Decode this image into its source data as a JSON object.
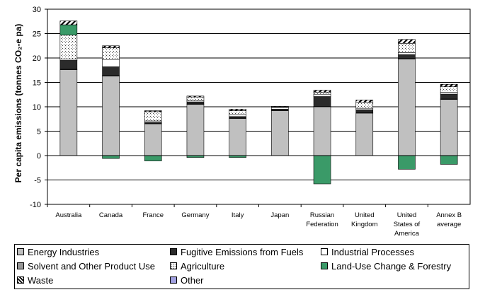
{
  "chart_data": {
    "type": "bar",
    "stacked": true,
    "title": "",
    "xlabel": "",
    "ylabel": "Per capita emissions (tonnes CO₂-e pa)",
    "ylim": [
      -10,
      30
    ],
    "yticks": [
      -10,
      -5,
      0,
      5,
      10,
      15,
      20,
      25,
      30
    ],
    "grid": true,
    "legend_position": "bottom",
    "categories": [
      [
        "Australia"
      ],
      [
        "Canada"
      ],
      [
        "France"
      ],
      [
        "Germany"
      ],
      [
        "Italy"
      ],
      [
        "Japan"
      ],
      [
        "Russian",
        "Federation"
      ],
      [
        "United",
        "Kingdom"
      ],
      [
        "United",
        "States of",
        "America"
      ],
      [
        "Annex B",
        "average"
      ]
    ],
    "series": [
      {
        "name": "Energy Industries",
        "color": "#c0c0c0",
        "pattern": "solid",
        "values": [
          17.6,
          16.3,
          6.5,
          10.5,
          7.6,
          9.2,
          10.0,
          8.7,
          19.8,
          11.5
        ]
      },
      {
        "name": "Solvent and Other Product Use",
        "color": "#969696",
        "pattern": "solid",
        "values": [
          0.1,
          0.1,
          0.1,
          0.1,
          0.1,
          0.1,
          0.1,
          0.1,
          0.1,
          0.1
        ]
      },
      {
        "name": "Fugitive Emissions from Fuels",
        "color": "#2b2b2b",
        "pattern": "solid",
        "values": [
          1.8,
          1.8,
          0.2,
          0.4,
          0.3,
          0.2,
          2.0,
          0.6,
          0.8,
          1.0
        ]
      },
      {
        "name": "Industrial Processes",
        "color": "#ffffff",
        "pattern": "solid",
        "values": [
          0.3,
          1.5,
          0.3,
          0.2,
          0.4,
          0.3,
          0.4,
          0.3,
          0.4,
          0.4
        ]
      },
      {
        "name": "Agriculture",
        "color": "#ffffff",
        "pattern": "dots",
        "values": [
          4.9,
          2.4,
          1.9,
          0.8,
          0.8,
          0.2,
          0.5,
          1.2,
          1.9,
          1.1
        ]
      },
      {
        "name": "Land-Use Change & Forestry",
        "color": "#3a9a68",
        "pattern": "solid",
        "values": [
          2.1,
          -0.6,
          -1.1,
          -0.4,
          -0.4,
          0.0,
          -5.8,
          0.0,
          -2.8,
          -1.8
        ]
      },
      {
        "name": "Waste",
        "color": "#ffffff",
        "pattern": "hatch",
        "values": [
          0.8,
          0.4,
          0.2,
          0.2,
          0.3,
          0.1,
          0.4,
          0.5,
          0.8,
          0.5
        ]
      },
      {
        "name": "Other",
        "color": "#a0a0e0",
        "pattern": "solid",
        "values": [
          0,
          0,
          0,
          0,
          0,
          0,
          0,
          0,
          0,
          0
        ]
      }
    ]
  }
}
